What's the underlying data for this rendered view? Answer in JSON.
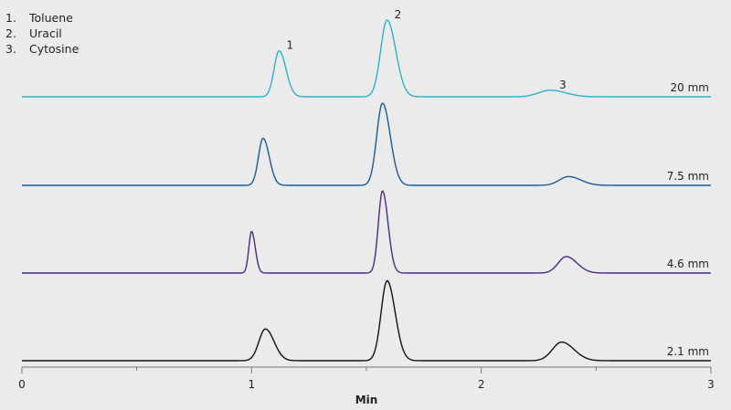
{
  "legend": [
    {
      "num": "1.",
      "name": "Toluene"
    },
    {
      "num": "2.",
      "name": "Uracil"
    },
    {
      "num": "3.",
      "name": "Cytosine"
    }
  ],
  "chart_data": {
    "type": "line",
    "xlabel": "Min",
    "ylabel": "",
    "xlim": [
      0,
      3
    ],
    "x_ticks": [
      0,
      1,
      2,
      3
    ],
    "x_tick_labels": [
      "0",
      "1",
      "2",
      "3"
    ],
    "grid": false,
    "series": [
      {
        "name": "20 mm",
        "color": "#2ab0cf",
        "peaks": [
          {
            "label": "1",
            "time": 1.12,
            "height": 0.42,
            "width": 0.022
          },
          {
            "label": "2",
            "time": 1.59,
            "height": 0.7,
            "width": 0.028
          },
          {
            "label": "3",
            "time": 2.3,
            "height": 0.06,
            "width": 0.05
          }
        ]
      },
      {
        "name": "7.5 mm",
        "color": "#1a5a96",
        "peaks": [
          {
            "label": "",
            "time": 1.05,
            "height": 0.43,
            "width": 0.02
          },
          {
            "label": "",
            "time": 1.57,
            "height": 0.75,
            "width": 0.025
          },
          {
            "label": "",
            "time": 2.38,
            "height": 0.08,
            "width": 0.04
          }
        ]
      },
      {
        "name": "4.6 mm",
        "color": "#4b2a7f",
        "peaks": [
          {
            "label": "",
            "time": 1.0,
            "height": 0.38,
            "width": 0.012
          },
          {
            "label": "",
            "time": 1.57,
            "height": 0.75,
            "width": 0.018
          },
          {
            "label": "",
            "time": 2.37,
            "height": 0.15,
            "width": 0.035
          }
        ]
      },
      {
        "name": "2.1 mm",
        "color": "#111111",
        "peaks": [
          {
            "label": "",
            "time": 1.06,
            "height": 0.29,
            "width": 0.028
          },
          {
            "label": "",
            "time": 1.59,
            "height": 0.73,
            "width": 0.026
          },
          {
            "label": "",
            "time": 2.35,
            "height": 0.17,
            "width": 0.04
          }
        ]
      }
    ]
  }
}
